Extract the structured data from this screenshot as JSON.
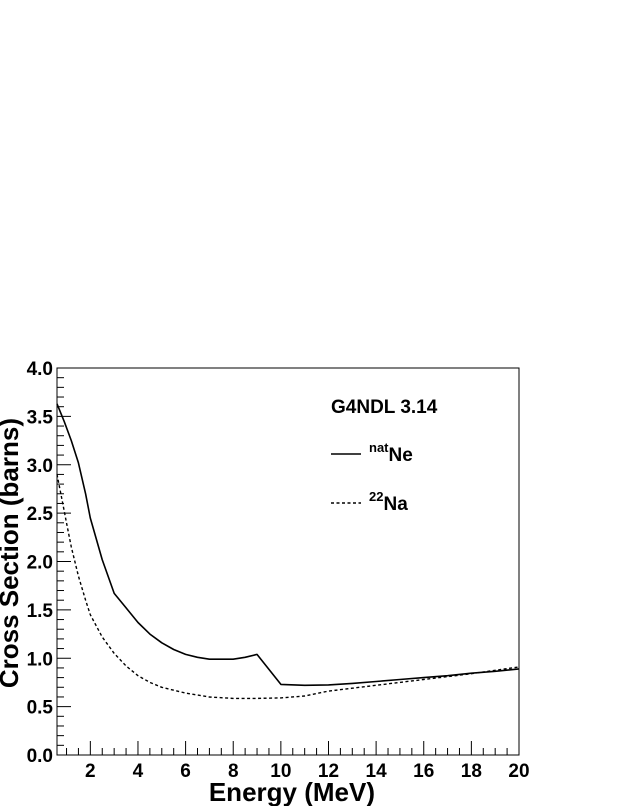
{
  "chart_data": {
    "type": "line",
    "title": "G4NDL 3.14",
    "xlabel": "Energy (MeV)",
    "ylabel": "Cross Section (barns)",
    "xlim": [
      0.6,
      20
    ],
    "ylim": [
      0.0,
      4.0
    ],
    "x_ticks": [
      "2",
      "4",
      "6",
      "8",
      "10",
      "12",
      "14",
      "16",
      "18",
      "20"
    ],
    "y_ticks": [
      "0.0",
      "0.5",
      "1.0",
      "1.5",
      "2.0",
      "2.5",
      "3.0",
      "3.5",
      "4.0"
    ],
    "grid": false,
    "legend_position": "top-right",
    "series": [
      {
        "name_sup": "nat",
        "name_main": "Ne",
        "style": "solid",
        "x": [
          0.6,
          0.9,
          1.2,
          1.5,
          1.8,
          2.0,
          2.5,
          3.0,
          3.5,
          4.0,
          4.5,
          5.0,
          5.5,
          6.0,
          6.5,
          7.0,
          7.5,
          8.0,
          8.5,
          9.0,
          10.0,
          11.0,
          12.0,
          13.0,
          14.0,
          15.0,
          16.0,
          17.0,
          18.0,
          19.0,
          20.0
        ],
        "y": [
          3.63,
          3.45,
          3.25,
          3.02,
          2.7,
          2.45,
          2.02,
          1.67,
          1.52,
          1.37,
          1.25,
          1.16,
          1.09,
          1.04,
          1.01,
          0.99,
          0.99,
          0.99,
          1.01,
          1.04,
          0.73,
          0.72,
          0.725,
          0.74,
          0.76,
          0.78,
          0.8,
          0.82,
          0.845,
          0.865,
          0.89
        ]
      },
      {
        "name_sup": "22",
        "name_main": "Na",
        "style": "dashed",
        "x": [
          0.6,
          0.8,
          1.0,
          1.2,
          1.5,
          1.8,
          2.0,
          2.5,
          3.0,
          3.5,
          4.0,
          4.5,
          5.0,
          5.5,
          6.0,
          7.0,
          8.0,
          9.0,
          10.0,
          11.0,
          12.0,
          13.0,
          14.0,
          15.0,
          16.0,
          17.0,
          18.0,
          19.0,
          20.0
        ],
        "y": [
          2.9,
          2.65,
          2.4,
          2.15,
          1.85,
          1.6,
          1.45,
          1.22,
          1.05,
          0.92,
          0.82,
          0.75,
          0.7,
          0.67,
          0.64,
          0.6,
          0.585,
          0.585,
          0.59,
          0.61,
          0.66,
          0.69,
          0.72,
          0.75,
          0.78,
          0.81,
          0.84,
          0.875,
          0.91
        ]
      }
    ]
  }
}
